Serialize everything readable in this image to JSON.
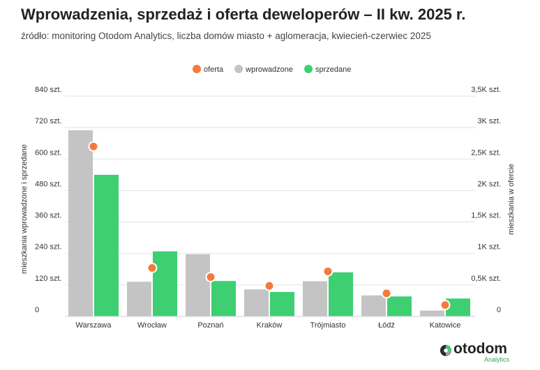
{
  "header": {
    "title": "Wprowadzenia, sprzedaż i oferta deweloperów – II kw. 2025 r.",
    "subtitle": "źródło: monitoring Otodom Analytics, liczba domów miasto + aglomeracja, kwiecień-czerwiec 2025"
  },
  "logo": {
    "name": "otodom",
    "sub": "Analytics"
  },
  "chart_data": {
    "type": "bar",
    "categories": [
      "Warszawa",
      "Wrocław",
      "Poznań",
      "Kraków",
      "Trójmiasto",
      "Łódź",
      "Katowice"
    ],
    "series": [
      {
        "name": "wprowadzone",
        "type": "bar",
        "axis": "left",
        "color": "#c4c4c4",
        "values": [
          710,
          132,
          237,
          103,
          134,
          80,
          22
        ]
      },
      {
        "name": "sprzedane",
        "type": "bar",
        "axis": "left",
        "color": "#3ecf73",
        "values": [
          540,
          248,
          135,
          93,
          168,
          76,
          68
        ]
      },
      {
        "name": "oferta",
        "type": "scatter",
        "axis": "right",
        "color": "#f47b3d",
        "values": [
          2700,
          770,
          625,
          485,
          715,
          365,
          180
        ]
      }
    ],
    "legend": [
      "oferta",
      "wprowadzone",
      "sprzedane"
    ],
    "legend_position": "top",
    "y_left": {
      "label": "mieszkania wprowadzone i sprzedane",
      "range": [
        0,
        840
      ],
      "ticks": [
        0,
        120,
        240,
        360,
        480,
        600,
        720,
        840
      ],
      "tick_labels": [
        "0",
        "120 szt.",
        "240 szt.",
        "360 szt.",
        "480 szt.",
        "600 szt.",
        "720 szt.",
        "840 szt."
      ]
    },
    "y_right": {
      "label": "mieszkania w ofercie",
      "range": [
        0,
        3500
      ],
      "ticks": [
        0,
        500,
        1000,
        1500,
        2000,
        2500,
        3000,
        3500
      ],
      "tick_labels": [
        "0",
        "0,5K szt.",
        "1K szt.",
        "1,5K szt.",
        "2K szt.",
        "2,5K szt.",
        "3K szt.",
        "3,5K szt."
      ]
    },
    "grid": true
  }
}
